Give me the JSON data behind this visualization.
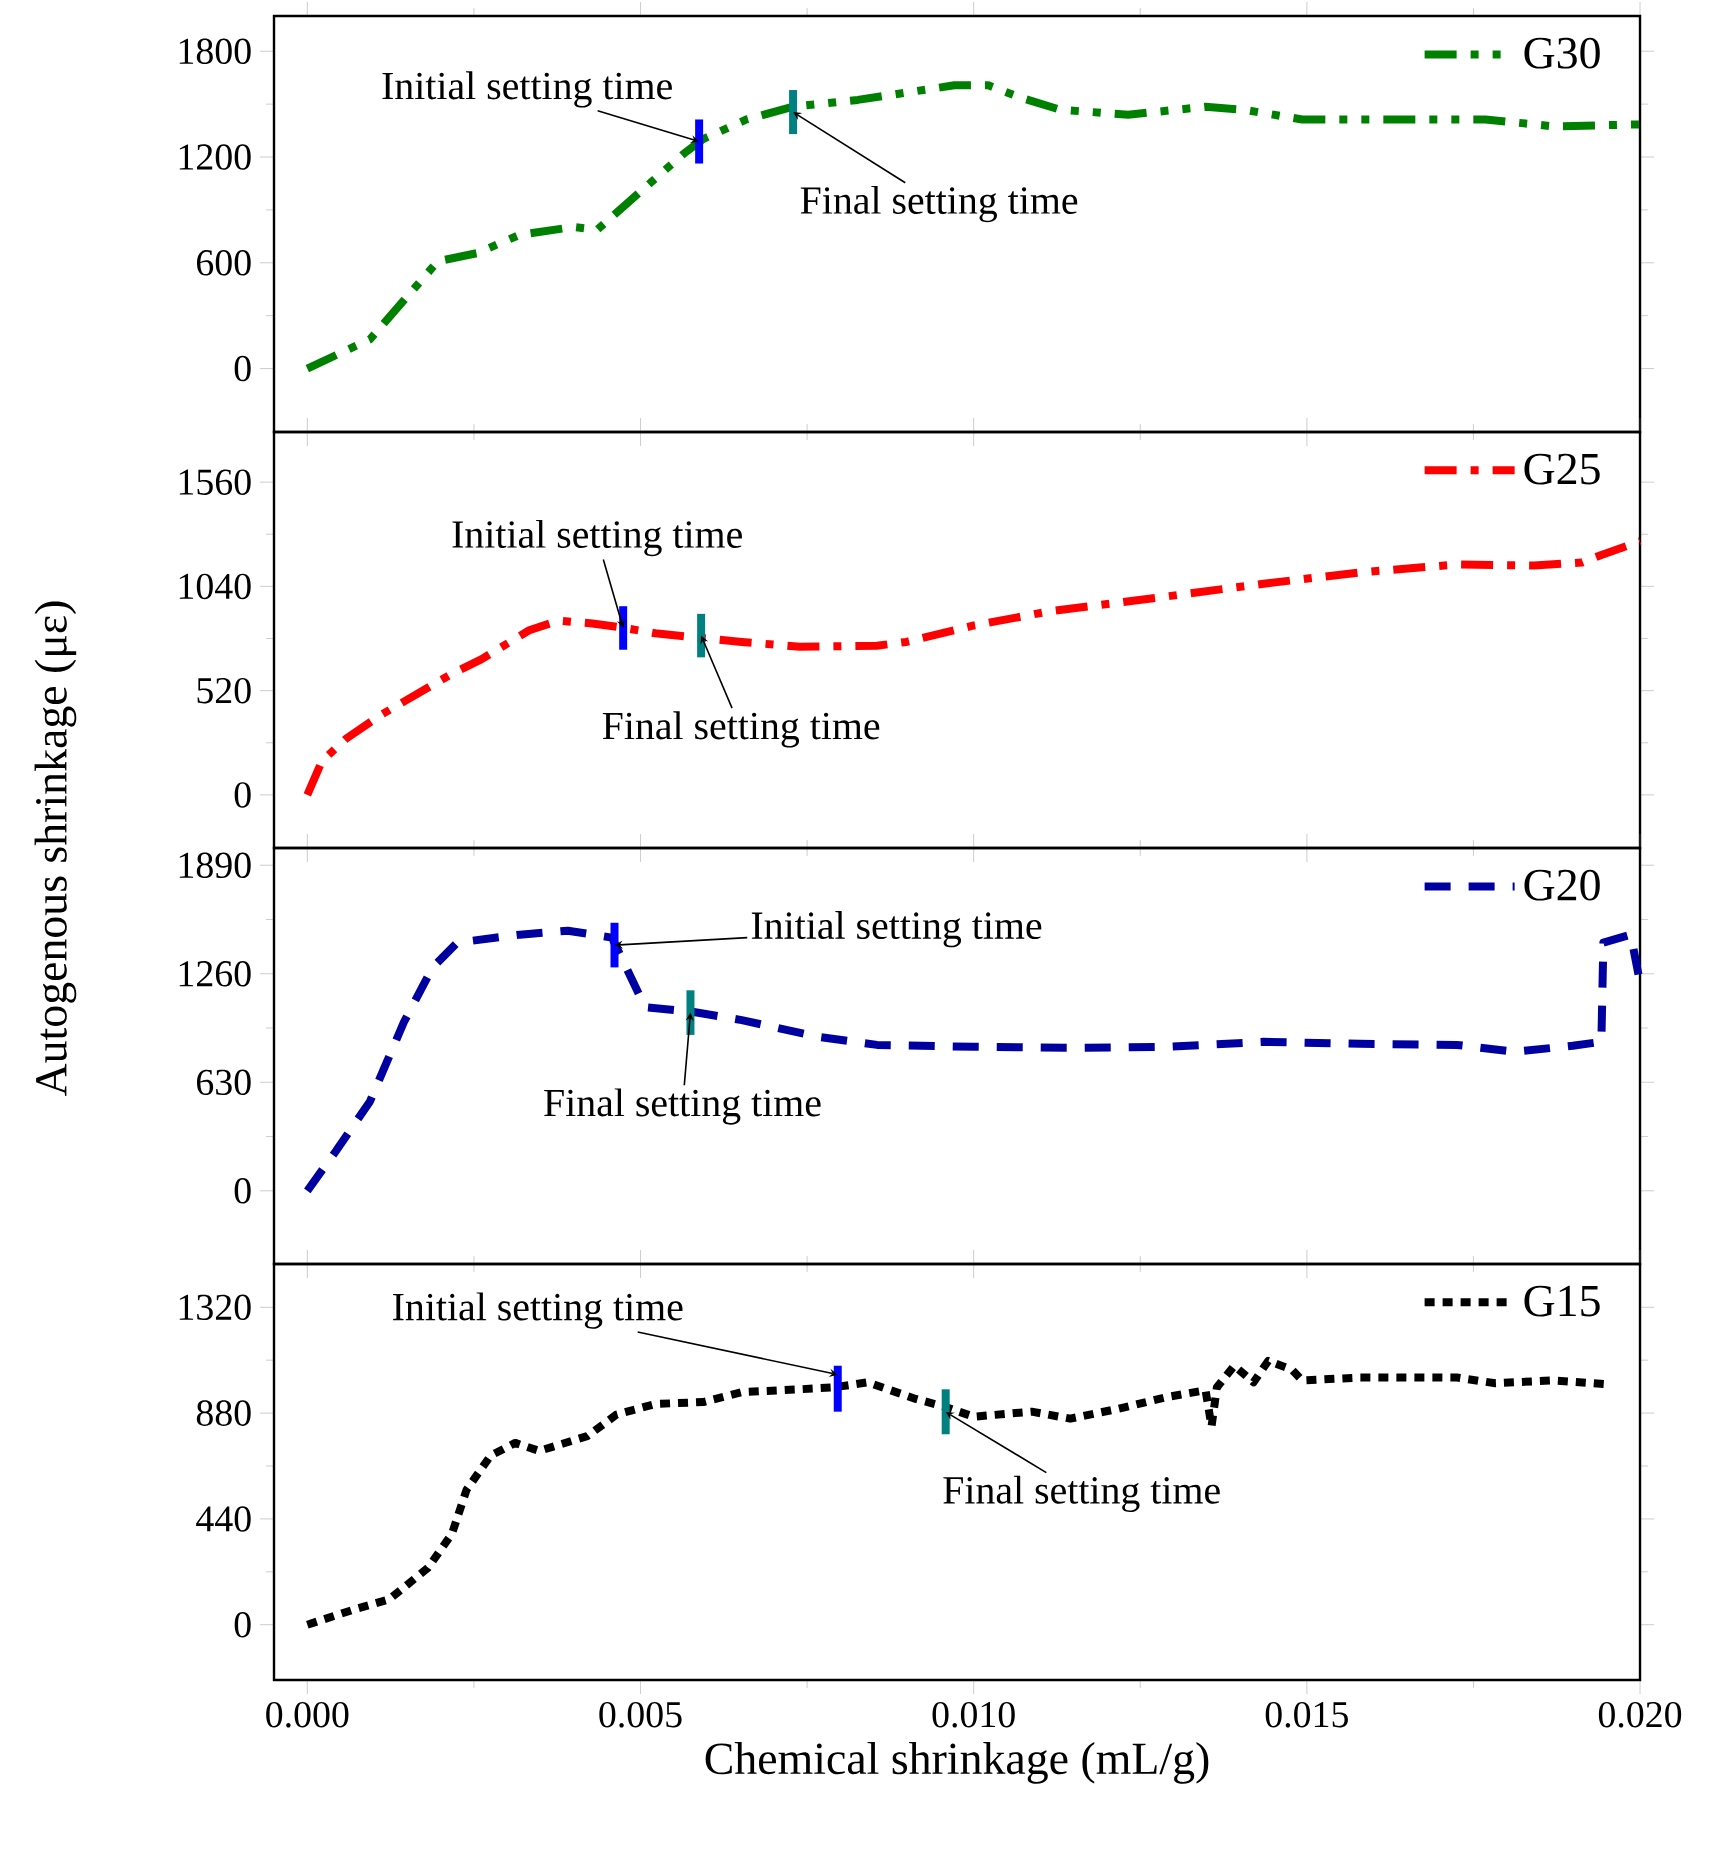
{
  "chart_data": [
    {
      "type": "line",
      "xlim": [
        -0.0005,
        0.02
      ],
      "xticks": [
        {
          "value": 0,
          "label": null
        },
        {
          "value": 0.005,
          "label": null
        },
        {
          "value": 0.01,
          "label": null
        },
        {
          "value": 0.015,
          "label": null
        },
        {
          "value": 0.02,
          "label": null
        }
      ],
      "ylim": [
        -360,
        2000
      ],
      "yticks": [
        0,
        600,
        1200,
        1800
      ],
      "tick_labels": "y",
      "legend": "top right",
      "series": [
        {
          "name": "G30",
          "color": "#008000",
          "line_style": "dashdotdot",
          "x": [
            0,
            0.00094,
            0.00196,
            0.00254,
            0.00319,
            0.00399,
            0.00435,
            0.00478,
            0.00565,
            0.00594,
            0.00659,
            0.00728,
            0.00826,
            0.00971,
            0.01022,
            0.01072,
            0.0113,
            0.01232,
            0.01348,
            0.01406,
            0.01493,
            0.01652,
            0.01768,
            0.0187,
            0.02
          ],
          "values": [
            0,
            166,
            609,
            654,
            759,
            803,
            787,
            931,
            1219,
            1302,
            1413,
            1485,
            1524,
            1607,
            1607,
            1535,
            1468,
            1440,
            1485,
            1468,
            1413,
            1413,
            1413,
            1374,
            1385
          ]
        },
        {
          "color": "#0000ff",
          "line_style": "solid",
          "x": [
            0.00588,
            0.00588
          ],
          "values": [
            1163,
            1413
          ]
        },
        {
          "color": "#008080",
          "line_style": "solid",
          "x": [
            0.00729,
            0.00729
          ],
          "values": [
            1330,
            1580
          ]
        }
      ],
      "annotations": [
        {
          "text": "Initial setting time",
          "x": 0.00588,
          "y": 1288
        },
        {
          "text": "Final setting time",
          "x": 0.00729,
          "y": 1455
        }
      ]
    },
    {
      "type": "line",
      "xlim": [
        -0.0005,
        0.02
      ],
      "xticks": [
        {
          "value": 0,
          "label": null
        },
        {
          "value": 0.005,
          "label": null
        },
        {
          "value": 0.01,
          "label": null
        },
        {
          "value": 0.015,
          "label": null
        },
        {
          "value": 0.02,
          "label": null
        }
      ],
      "ylim": [
        -265,
        1810
      ],
      "yticks": [
        0,
        520,
        1040,
        1560
      ],
      "tick_labels": "y",
      "legend": "top right",
      "ylabel": "Autogenous shrinkage (με)",
      "series": [
        {
          "name": "G25",
          "color": "#ff0000",
          "line_style": "dashdot",
          "x": [
            0,
            0.00022,
            0.00058,
            0.00109,
            0.00217,
            0.00261,
            0.00333,
            0.00377,
            0.00428,
            0.00471,
            0.00522,
            0.00594,
            0.00652,
            0.00739,
            0.00855,
            0.00899,
            0.01,
            0.01116,
            0.0129,
            0.01435,
            0.0158,
            0.01725,
            0.01841,
            0.01913,
            0.01942,
            0.02
          ],
          "values": [
            0,
            169,
            280,
            396,
            604,
            676,
            821,
            869,
            855,
            835,
            806,
            782,
            763,
            739,
            744,
            763,
            845,
            917,
            990,
            1053,
            1110,
            1149,
            1144,
            1159,
            1197,
            1265
          ]
        },
        {
          "color": "#0000ff",
          "line_style": "solid",
          "x": [
            0.00474,
            0.00474
          ],
          "values": [
            724,
            941
          ]
        },
        {
          "color": "#008080",
          "line_style": "solid",
          "x": [
            0.00591,
            0.00591
          ],
          "values": [
            686,
            903
          ]
        }
      ],
      "annotations": [
        {
          "text": "Initial setting time",
          "x": 0.00474,
          "y": 832
        },
        {
          "text": "Final setting time",
          "x": 0.00591,
          "y": 795
        }
      ]
    },
    {
      "type": "line",
      "xlim": [
        -0.0005,
        0.02
      ],
      "xticks": [
        {
          "value": 0,
          "label": null
        },
        {
          "value": 0.005,
          "label": null
        },
        {
          "value": 0.01,
          "label": null
        },
        {
          "value": 0.015,
          "label": null
        },
        {
          "value": 0.02,
          "label": null
        }
      ],
      "ylim": [
        -425,
        1990
      ],
      "yticks": [
        0,
        630,
        1260,
        1890
      ],
      "tick_labels": "y",
      "legend": "top right",
      "series": [
        {
          "name": "G20",
          "color": "#0000a0",
          "line_style": "dashed",
          "x": [
            0,
            0.00043,
            0.00094,
            0.00145,
            0.00188,
            0.00225,
            0.00319,
            0.00391,
            0.00457,
            0.00507,
            0.0058,
            0.00652,
            0.00768,
            0.00855,
            0.01,
            0.01145,
            0.0129,
            0.01435,
            0.0158,
            0.01725,
            0.01812,
            0.01899,
            0.01942,
            0.01945,
            0.01986,
            0.02
          ],
          "values": [
            0,
            231,
            519,
            980,
            1297,
            1441,
            1487,
            1510,
            1470,
            1066,
            1038,
            991,
            893,
            847,
            836,
            830,
            836,
            865,
            853,
            847,
            807,
            842,
            865,
            1441,
            1487,
            1210
          ]
        },
        {
          "color": "#0000ff",
          "line_style": "solid",
          "x": [
            0.00461,
            0.00461
          ],
          "values": [
            1297,
            1556
          ]
        },
        {
          "color": "#008080",
          "line_style": "solid",
          "x": [
            0.00575,
            0.00575
          ],
          "values": [
            905,
            1164
          ]
        }
      ],
      "annotations": [
        {
          "text": "Initial setting time",
          "x": 0.00461,
          "y": 1426
        },
        {
          "text": "Final setting time",
          "x": 0.00575,
          "y": 1035
        }
      ]
    },
    {
      "type": "line",
      "xlim": [
        -0.0005,
        0.02
      ],
      "xticks": [
        {
          "value": 0,
          "label": "0.000"
        },
        {
          "value": 0.005,
          "label": "0.005"
        },
        {
          "value": 0.01,
          "label": "0.010"
        },
        {
          "value": 0.015,
          "label": "0.015"
        },
        {
          "value": 0.02,
          "label": "0.020"
        }
      ],
      "ylim": [
        -230,
        1500
      ],
      "yticks": [
        0,
        440,
        880,
        1320
      ],
      "legend": "top right",
      "xlabel": "Chemical shrinkage (mL/g)",
      "series": [
        {
          "name": "G15",
          "color": "#000000",
          "line_style": "dotted",
          "x": [
            0,
            0.00072,
            0.00123,
            0.00181,
            0.00217,
            0.00239,
            0.00275,
            0.00312,
            0.00348,
            0.0042,
            0.00464,
            0.00522,
            0.00594,
            0.00652,
            0.00739,
            0.0079,
            0.00841,
            0.00913,
            0.00957,
            0.01,
            0.01087,
            0.01145,
            0.01217,
            0.0129,
            0.01348,
            0.01357,
            0.01365,
            0.01391,
            0.0142,
            0.01442,
            0.01478,
            0.01493,
            0.0158,
            0.01725,
            0.01783,
            0.0187,
            0.01957
          ],
          "values": [
            0,
            65,
            106,
            236,
            378,
            561,
            703,
            756,
            723,
            784,
            874,
            918,
            926,
            967,
            979,
            987,
            1008,
            939,
            906,
            865,
            886,
            857,
            898,
            947,
            975,
            825,
            987,
            1077,
            1008,
            1097,
            1060,
            1016,
            1028,
            1028,
            1004,
            1016,
            999
          ]
        },
        {
          "color": "#0000ff",
          "line_style": "solid",
          "x": [
            0.00796,
            0.00796
          ],
          "values": [
            886,
            1077
          ]
        },
        {
          "color": "#008080",
          "line_style": "solid",
          "x": [
            0.00958,
            0.00958
          ],
          "values": [
            792,
            979
          ]
        }
      ],
      "annotations": [
        {
          "text": "Initial setting time",
          "x": 0.00796,
          "y": 1040
        },
        {
          "text": "Final setting time",
          "x": 0.00958,
          "y": 885
        }
      ]
    }
  ]
}
